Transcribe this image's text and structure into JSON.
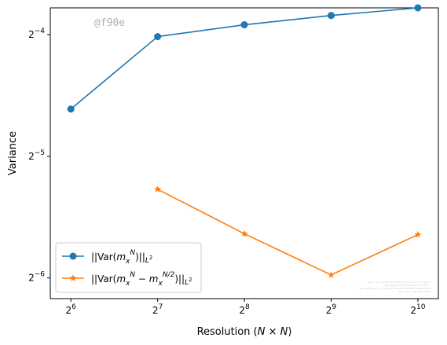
{
  "watermark": "@f90e",
  "note_lines": [
    "Simul: hx_n=1.5e7 mu 0.0593 mcr=1.1 v_1=3 std=1",
    "F01_Var[mx] = Fl [f] Var[mx]=0.0402 ...",
    "Run: github.com/... (private) statistical solutions experiment",
    "Run: 512 ... Runtime: 1000"
  ],
  "colors": {
    "series1": "#1f77b4",
    "series2": "#ff7f0e"
  },
  "chart_data": {
    "type": "line",
    "xlabel": "Resolution (N × N)",
    "ylabel": "Variance",
    "xscale": "log2",
    "yscale": "log2",
    "xlim": [
      54.3,
      1206
    ],
    "ylim_log2": [
      -6.17,
      -3.78
    ],
    "xticks": [
      {
        "value": 64,
        "base": "2",
        "exp": "6"
      },
      {
        "value": 128,
        "base": "2",
        "exp": "7"
      },
      {
        "value": 256,
        "base": "2",
        "exp": "8"
      },
      {
        "value": 512,
        "base": "2",
        "exp": "9"
      },
      {
        "value": 1024,
        "base": "2",
        "exp": "10"
      }
    ],
    "yticks": [
      {
        "value": 0.0625,
        "base": "2",
        "exp": "−4"
      },
      {
        "value": 0.03125,
        "base": "2",
        "exp": "−5"
      },
      {
        "value": 0.015625,
        "base": "2",
        "exp": "−6"
      }
    ],
    "series": [
      {
        "legend_label": "||Var(m_x^N)||_{L^2}",
        "marker": "circle",
        "color": "#1f77b4",
        "x": [
          64,
          128,
          256,
          512,
          1024
        ],
        "y": [
          0.0409,
          0.0618,
          0.0661,
          0.0697,
          0.0728
        ]
      },
      {
        "legend_label": "||Var(m_x^N − m_x^{N/2})||_{L^2}",
        "marker": "star",
        "color": "#ff7f0e",
        "x": [
          128,
          256,
          512,
          1024
        ],
        "y": [
          0.0259,
          0.0201,
          0.0159,
          0.02
        ]
      }
    ],
    "legend_position": "lower-left",
    "grid": false
  }
}
